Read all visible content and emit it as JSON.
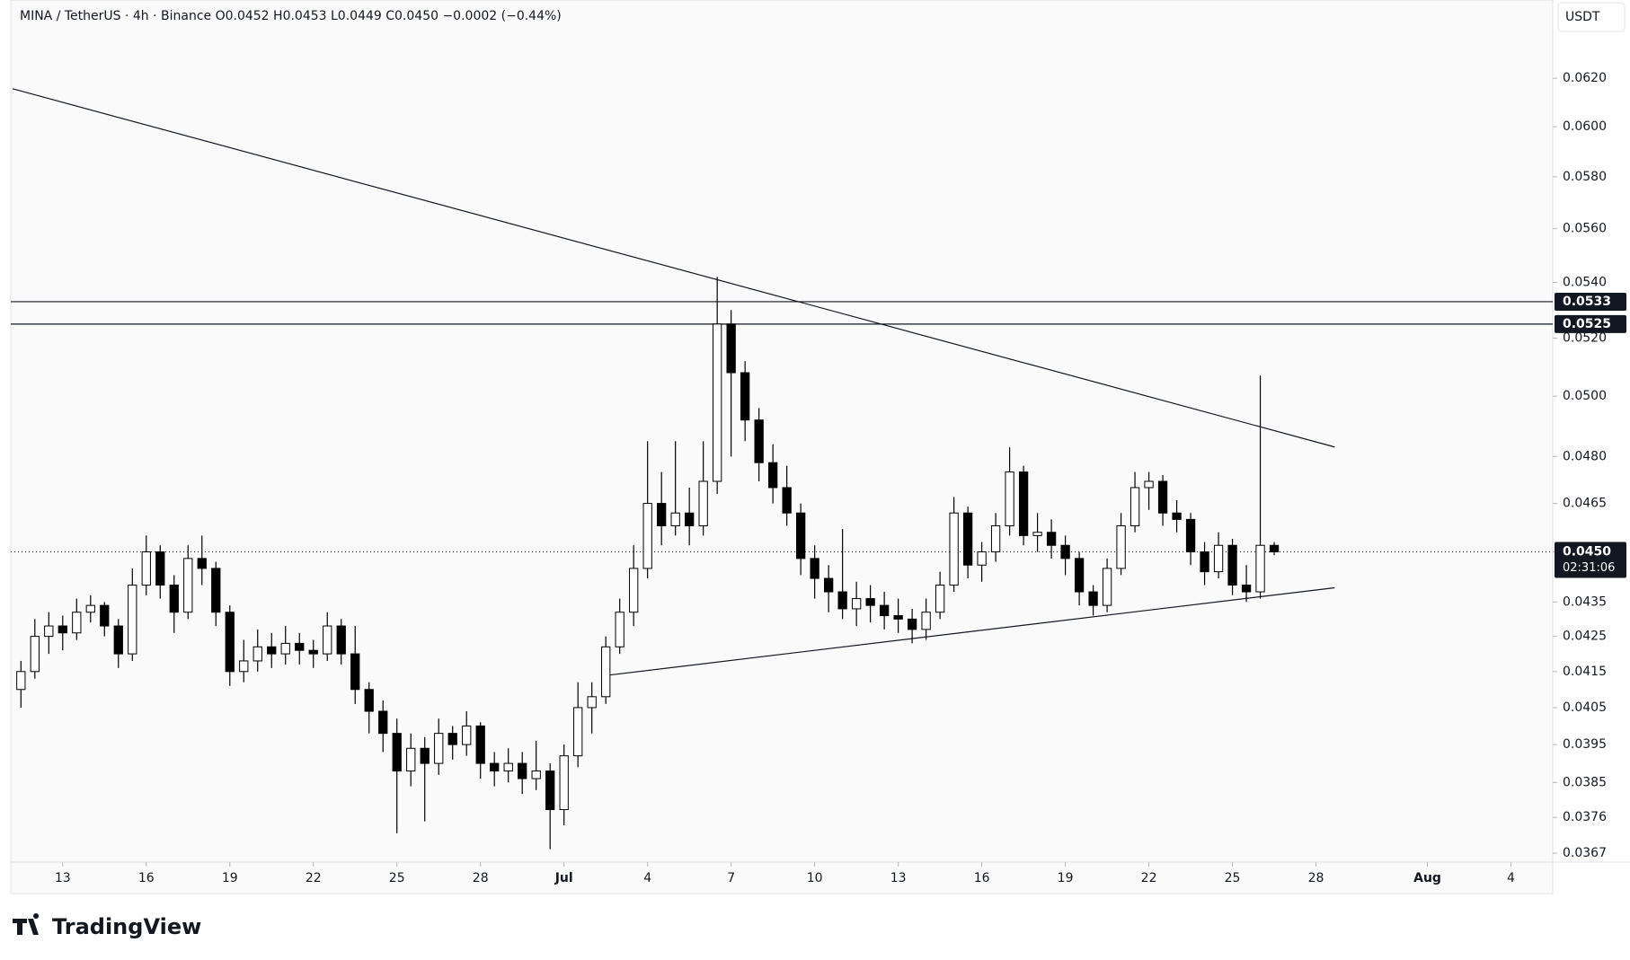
{
  "chart_data": {
    "type": "candlestick",
    "title": "MINA / TetherUS · 4h · Binance  O0.0452  H0.0453  L0.0449  C0.0450  −0.0002 (−0.44%)",
    "currency": "USDT",
    "brand": "TradingView",
    "log_scale": true,
    "up_color": "#ffffff",
    "down_color": "#000000",
    "ylim": [
      0.03648,
      0.06537
    ],
    "yticks": [
      {
        "value": 0.062,
        "label": "0.0620"
      },
      {
        "value": 0.06,
        "label": "0.0600"
      },
      {
        "value": 0.058,
        "label": "0.0580"
      },
      {
        "value": 0.056,
        "label": "0.0560"
      },
      {
        "value": 0.054,
        "label": "0.0540"
      },
      {
        "value": 0.052,
        "label": "0.0520"
      },
      {
        "value": 0.05,
        "label": "0.0500"
      },
      {
        "value": 0.048,
        "label": "0.0480"
      },
      0.0465,
      {
        "value": 0.045,
        "label": "0.0450"
      },
      0.0435,
      0.0425,
      0.0415,
      0.0405,
      0.0395,
      0.0385,
      0.0376,
      0.0367
    ],
    "xlim": [
      11.2,
      66.5
    ],
    "xticks": [
      13,
      16,
      19,
      22,
      25,
      28,
      {
        "value": 31,
        "label": "Jul"
      },
      {
        "value": 34,
        "label": "4"
      },
      {
        "value": 37,
        "label": "7"
      },
      {
        "value": 40,
        "label": "10"
      },
      {
        "value": 43,
        "label": "13"
      },
      {
        "value": 46,
        "label": "16"
      },
      {
        "value": 49,
        "label": "19"
      },
      {
        "value": 52,
        "label": "22"
      },
      {
        "value": 55,
        "label": "25"
      },
      {
        "value": 58,
        "label": "28"
      },
      {
        "value": 62,
        "label": "Aug"
      },
      {
        "value": 65,
        "label": "4"
      }
    ],
    "x": [
      11.5,
      12,
      12.5,
      13,
      13.5,
      14,
      14.5,
      15,
      15.5,
      16,
      16.5,
      17,
      17.5,
      18,
      18.5,
      19,
      19.5,
      20,
      20.5,
      21,
      21.5,
      22,
      22.5,
      23,
      23.5,
      24,
      24.5,
      25,
      25.5,
      26,
      26.5,
      27,
      27.5,
      28,
      28.5,
      29,
      29.5,
      30,
      30.5,
      31,
      31.5,
      32,
      32.5,
      33,
      33.5,
      34,
      34.5,
      35,
      35.5,
      36,
      36.5,
      37,
      37.5,
      38,
      38.5,
      39,
      39.5,
      40,
      40.5,
      41,
      41.5,
      42,
      42.5,
      43,
      43.5,
      44,
      44.5,
      45,
      45.5,
      46,
      46.5,
      47,
      47.5,
      48,
      48.5,
      49,
      49.5,
      50,
      50.5,
      51,
      51.5,
      52,
      52.5,
      53,
      53.5,
      54,
      54.5,
      55,
      55.5,
      56,
      56.5
    ],
    "ohlc": [
      [
        0.041,
        0.0418,
        0.0405,
        0.0415
      ],
      [
        0.0415,
        0.043,
        0.0413,
        0.0425
      ],
      [
        0.0425,
        0.0432,
        0.042,
        0.0428
      ],
      [
        0.0428,
        0.0431,
        0.0421,
        0.0426
      ],
      [
        0.0426,
        0.0436,
        0.0424,
        0.0432
      ],
      [
        0.0432,
        0.0437,
        0.0429,
        0.0434
      ],
      [
        0.0434,
        0.0435,
        0.0425,
        0.0428
      ],
      [
        0.0428,
        0.043,
        0.0416,
        0.042
      ],
      [
        0.042,
        0.0445,
        0.0418,
        0.044
      ],
      [
        0.044,
        0.0455,
        0.0437,
        0.045
      ],
      [
        0.045,
        0.0452,
        0.0436,
        0.044
      ],
      [
        0.044,
        0.0443,
        0.0426,
        0.0432
      ],
      [
        0.0432,
        0.0452,
        0.043,
        0.0448
      ],
      [
        0.0448,
        0.0455,
        0.044,
        0.0445
      ],
      [
        0.0445,
        0.0447,
        0.0428,
        0.0432
      ],
      [
        0.0432,
        0.0434,
        0.0411,
        0.0415
      ],
      [
        0.0415,
        0.0424,
        0.0412,
        0.0418
      ],
      [
        0.0418,
        0.0427,
        0.0415,
        0.0422
      ],
      [
        0.0422,
        0.0426,
        0.0416,
        0.042
      ],
      [
        0.042,
        0.0428,
        0.0417,
        0.0423
      ],
      [
        0.0423,
        0.0426,
        0.0417,
        0.0421
      ],
      [
        0.0421,
        0.0424,
        0.0416,
        0.042
      ],
      [
        0.042,
        0.0432,
        0.0418,
        0.0428
      ],
      [
        0.0428,
        0.043,
        0.0417,
        0.042
      ],
      [
        0.042,
        0.0428,
        0.0406,
        0.041
      ],
      [
        0.041,
        0.0412,
        0.0398,
        0.0404
      ],
      [
        0.0404,
        0.0407,
        0.0393,
        0.0398
      ],
      [
        0.0398,
        0.0402,
        0.0372,
        0.0388
      ],
      [
        0.0388,
        0.0398,
        0.0384,
        0.0394
      ],
      [
        0.0394,
        0.0397,
        0.0375,
        0.039
      ],
      [
        0.039,
        0.0402,
        0.0387,
        0.0398
      ],
      [
        0.0398,
        0.04,
        0.0391,
        0.0395
      ],
      [
        0.0395,
        0.0404,
        0.0392,
        0.04
      ],
      [
        0.04,
        0.0401,
        0.0386,
        0.039
      ],
      [
        0.039,
        0.0393,
        0.0384,
        0.0388
      ],
      [
        0.0388,
        0.0394,
        0.0385,
        0.039
      ],
      [
        0.039,
        0.0393,
        0.0382,
        0.0386
      ],
      [
        0.0386,
        0.0396,
        0.0383,
        0.0388
      ],
      [
        0.0388,
        0.039,
        0.0368,
        0.0378
      ],
      [
        0.0378,
        0.0395,
        0.0374,
        0.0392
      ],
      [
        0.0392,
        0.0412,
        0.0389,
        0.0405
      ],
      [
        0.0405,
        0.0412,
        0.0398,
        0.0408
      ],
      [
        0.0408,
        0.0425,
        0.0406,
        0.0422
      ],
      [
        0.0422,
        0.0436,
        0.042,
        0.0432
      ],
      [
        0.0432,
        0.0452,
        0.0428,
        0.0445
      ],
      [
        0.0445,
        0.0485,
        0.0442,
        0.0465
      ],
      [
        0.0465,
        0.0475,
        0.0452,
        0.0458
      ],
      [
        0.0458,
        0.0485,
        0.0455,
        0.0462
      ],
      [
        0.0462,
        0.047,
        0.0452,
        0.0458
      ],
      [
        0.0458,
        0.0485,
        0.0455,
        0.0472
      ],
      [
        0.0472,
        0.0542,
        0.0468,
        0.0525
      ],
      [
        0.0525,
        0.053,
        0.048,
        0.0508
      ],
      [
        0.0508,
        0.0512,
        0.0485,
        0.0492
      ],
      [
        0.0492,
        0.0496,
        0.0472,
        0.0478
      ],
      [
        0.0478,
        0.0484,
        0.0465,
        0.047
      ],
      [
        0.047,
        0.0477,
        0.0458,
        0.0462
      ],
      [
        0.0462,
        0.0465,
        0.0443,
        0.0448
      ],
      [
        0.0448,
        0.0452,
        0.0436,
        0.0442
      ],
      [
        0.0442,
        0.0446,
        0.0432,
        0.0438
      ],
      [
        0.0438,
        0.0457,
        0.043,
        0.0433
      ],
      [
        0.0433,
        0.0441,
        0.0428,
        0.0436
      ],
      [
        0.0436,
        0.044,
        0.0429,
        0.0434
      ],
      [
        0.0434,
        0.0438,
        0.0427,
        0.0431
      ],
      [
        0.0431,
        0.0436,
        0.0426,
        0.043
      ],
      [
        0.043,
        0.0433,
        0.0423,
        0.0427
      ],
      [
        0.0427,
        0.0436,
        0.0424,
        0.0432
      ],
      [
        0.0432,
        0.0444,
        0.043,
        0.044
      ],
      [
        0.044,
        0.0467,
        0.0438,
        0.0462
      ],
      [
        0.0462,
        0.0464,
        0.0442,
        0.0446
      ],
      [
        0.0446,
        0.0453,
        0.0441,
        0.045
      ],
      [
        0.045,
        0.0462,
        0.0447,
        0.0458
      ],
      [
        0.0458,
        0.0483,
        0.0455,
        0.0475
      ],
      [
        0.0475,
        0.0477,
        0.0452,
        0.0455
      ],
      [
        0.0455,
        0.0462,
        0.045,
        0.0456
      ],
      [
        0.0456,
        0.046,
        0.0448,
        0.0452
      ],
      [
        0.0452,
        0.0455,
        0.0443,
        0.0448
      ],
      [
        0.0448,
        0.045,
        0.0434,
        0.0438
      ],
      [
        0.0438,
        0.044,
        0.0431,
        0.0434
      ],
      [
        0.0434,
        0.0448,
        0.0432,
        0.0445
      ],
      [
        0.0445,
        0.0462,
        0.0443,
        0.0458
      ],
      [
        0.0458,
        0.0475,
        0.0456,
        0.047
      ],
      [
        0.047,
        0.0475,
        0.0463,
        0.0472
      ],
      [
        0.0472,
        0.0474,
        0.0458,
        0.0462
      ],
      [
        0.0462,
        0.0466,
        0.0456,
        0.046
      ],
      [
        0.046,
        0.0462,
        0.0446,
        0.045
      ],
      [
        0.045,
        0.0453,
        0.044,
        0.0444
      ],
      [
        0.0444,
        0.0456,
        0.0442,
        0.0452
      ],
      [
        0.0452,
        0.0454,
        0.0437,
        0.044
      ],
      [
        0.044,
        0.0446,
        0.0435,
        0.0438
      ],
      [
        0.0438,
        0.0507,
        0.0436,
        0.0452
      ],
      [
        0.0452,
        0.0453,
        0.0449,
        0.045
      ]
    ],
    "levels": [
      {
        "value": 0.0533,
        "label": "0.0533"
      },
      {
        "value": 0.0525,
        "label": "0.0525"
      }
    ],
    "last_price": {
      "value": 0.045,
      "label": "0.0450",
      "countdown": "02:31:06"
    },
    "trendlines": [
      {
        "x": [
          11.2,
          58.67
        ],
        "y": [
          0.06156,
          0.04831
        ]
      },
      {
        "x": [
          32.5,
          58.67
        ],
        "y": [
          0.04139,
          0.04392
        ]
      }
    ]
  }
}
